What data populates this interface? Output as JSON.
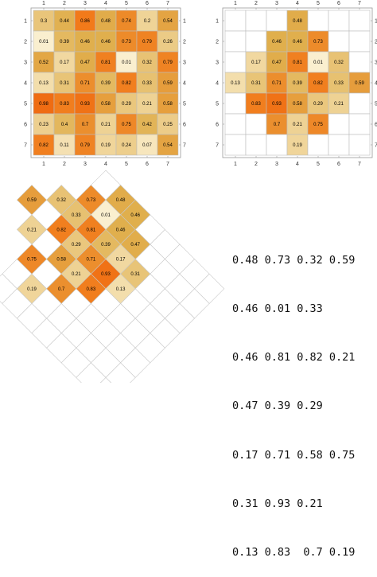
{
  "colors": {
    "frame": "#999999",
    "grid": "#bdbdbd",
    "lattice": "#c8c8c8",
    "low": "#fbf0d2",
    "mid": "#e0b04e",
    "high": "#f27b1b",
    "top": "#ef6a12"
  },
  "chart_data": [
    {
      "type": "heatmap",
      "name": "full-matrix",
      "x_ticks": [
        "1",
        "2",
        "3",
        "4",
        "5",
        "6",
        "7"
      ],
      "y_ticks": [
        "1",
        "2",
        "3",
        "4",
        "5",
        "6",
        "7"
      ],
      "values": [
        [
          0.3,
          0.44,
          0.86,
          0.48,
          0.74,
          0.2,
          0.54
        ],
        [
          0.01,
          0.39,
          0.46,
          0.46,
          0.73,
          0.79,
          0.26
        ],
        [
          0.52,
          0.17,
          0.47,
          0.81,
          0.01,
          0.32,
          0.79
        ],
        [
          0.13,
          0.31,
          0.71,
          0.39,
          0.82,
          0.33,
          0.59
        ],
        [
          0.98,
          0.83,
          0.93,
          0.58,
          0.29,
          0.21,
          0.58
        ],
        [
          0.23,
          0.4,
          0.7,
          0.21,
          0.75,
          0.42,
          0.25
        ],
        [
          0.82,
          0.11,
          0.79,
          0.19,
          0.24,
          0.07,
          0.54
        ]
      ]
    },
    {
      "type": "heatmap",
      "name": "diamond-selection",
      "x_ticks": [
        "1",
        "2",
        "3",
        "4",
        "5",
        "6",
        "7"
      ],
      "y_ticks": [
        "1",
        "2",
        "3",
        "4",
        "5",
        "6",
        "7"
      ],
      "values": [
        [
          null,
          null,
          null,
          0.48,
          null,
          null,
          null
        ],
        [
          null,
          null,
          0.46,
          0.46,
          0.73,
          null,
          null
        ],
        [
          null,
          0.17,
          0.47,
          0.81,
          0.01,
          0.32,
          null
        ],
        [
          0.13,
          0.31,
          0.71,
          0.39,
          0.82,
          0.33,
          0.59
        ],
        [
          null,
          0.83,
          0.93,
          0.58,
          0.29,
          0.21,
          null
        ],
        [
          null,
          null,
          0.7,
          0.21,
          0.75,
          null,
          null
        ],
        [
          null,
          null,
          null,
          0.19,
          null,
          null,
          null
        ]
      ]
    },
    {
      "type": "heatmap",
      "name": "rotated-lattice",
      "values": [
        [
          0.48,
          0.73,
          0.32,
          0.59
        ],
        [
          0.46,
          0.01,
          0.33,
          null
        ],
        [
          0.46,
          0.81,
          0.82,
          0.21
        ],
        [
          0.47,
          0.39,
          0.29,
          null
        ],
        [
          0.17,
          0.71,
          0.58,
          0.75
        ],
        [
          0.31,
          0.93,
          0.21,
          null
        ],
        [
          0.13,
          0.83,
          0.7,
          0.19
        ]
      ]
    }
  ],
  "text_rows": [
    "0.48 0.73 0.32 0.59",
    "0.46 0.01 0.33",
    "0.46 0.81 0.82 0.21",
    "0.47 0.39 0.29",
    "0.17 0.71 0.58 0.75",
    "0.31 0.93 0.21",
    "0.13 0.83  0.7 0.19"
  ]
}
